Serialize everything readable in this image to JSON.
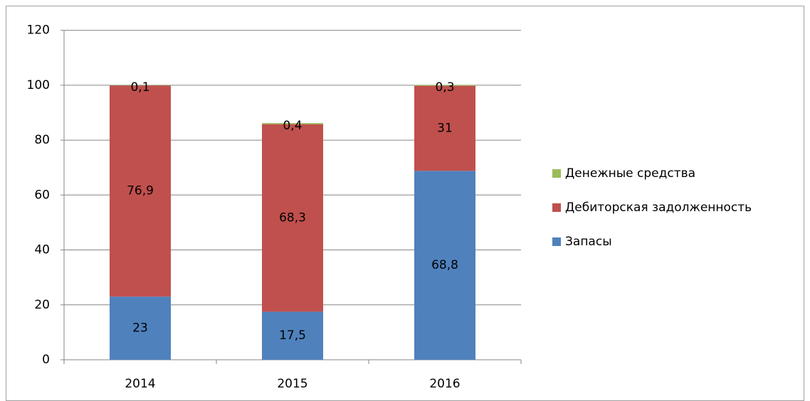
{
  "chart_data": {
    "type": "stacked_bar",
    "categories": [
      "2014",
      "2015",
      "2016"
    ],
    "series": [
      {
        "name": "Запасы",
        "color": "#4f81bd",
        "values": [
          23,
          17.5,
          68.8
        ],
        "value_labels": [
          "23",
          "17,5",
          "68,8"
        ]
      },
      {
        "name": "Дебиторская задолженность",
        "color": "#c0504d",
        "values": [
          76.9,
          68.3,
          31
        ],
        "value_labels": [
          "76,9",
          "68,3",
          "31"
        ]
      },
      {
        "name": "Денежные средства",
        "color": "#9bbb59",
        "values": [
          0.1,
          0.4,
          0.3
        ],
        "value_labels": [
          "0,1",
          "0,4",
          "0,3"
        ]
      }
    ],
    "ylim": [
      0,
      120
    ],
    "yticks": [
      0,
      20,
      40,
      60,
      80,
      100,
      120
    ],
    "grid": true,
    "legend": "right"
  }
}
